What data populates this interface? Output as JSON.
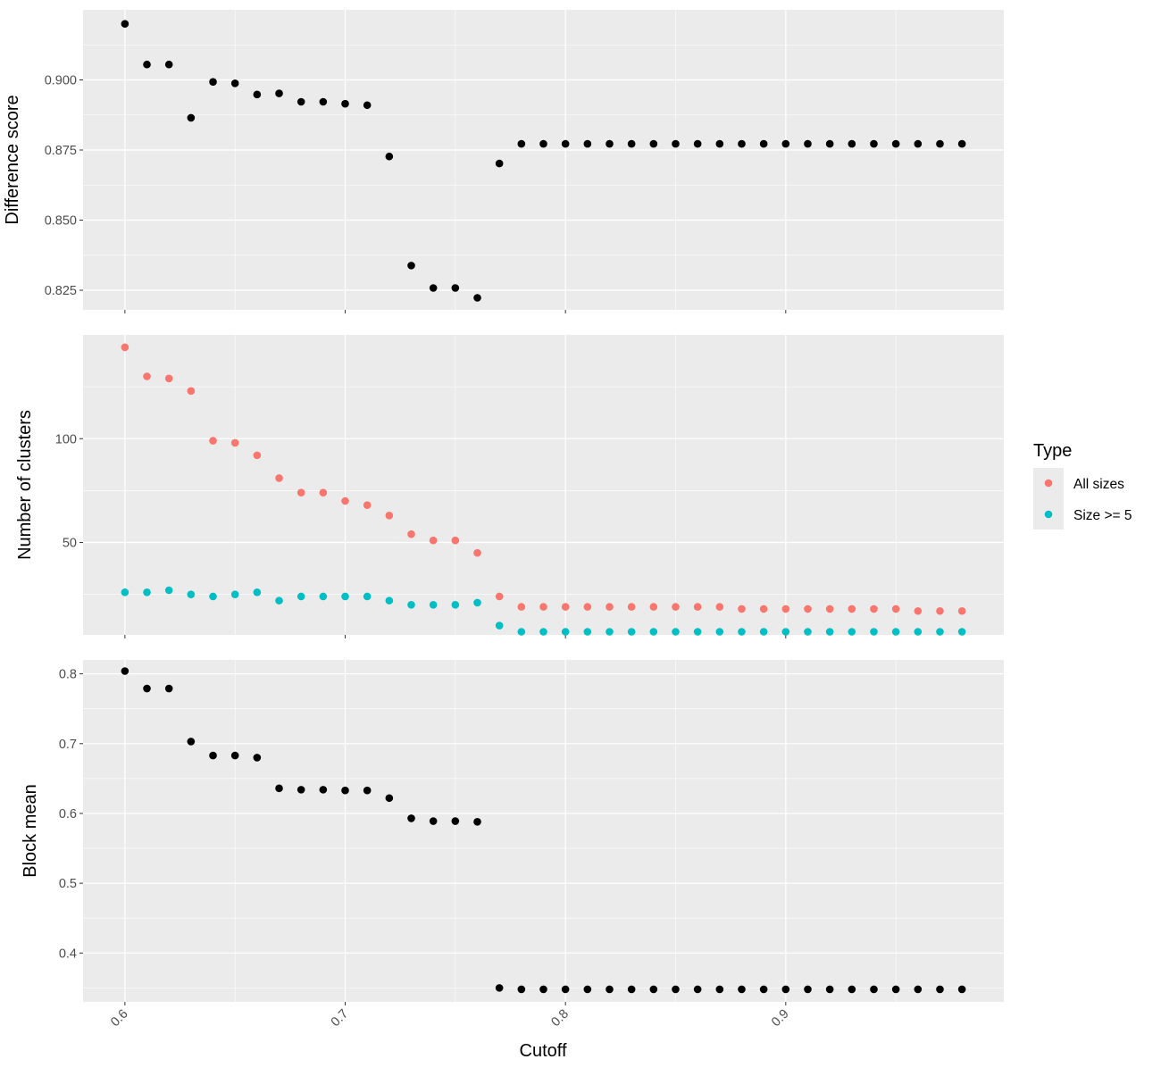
{
  "chart_data": [
    {
      "type": "scatter",
      "ylabel": "Difference score",
      "xlabel": "",
      "xlim": [
        0.581,
        0.999
      ],
      "ylim": [
        0.818,
        0.925
      ],
      "yticks": [
        0.825,
        0.85,
        0.875,
        0.9
      ],
      "ytick_labels": [
        "0.825",
        "0.850",
        "0.875",
        "0.900"
      ],
      "series": [
        {
          "color": "#000000",
          "x": [
            0.6,
            0.61,
            0.62,
            0.63,
            0.64,
            0.65,
            0.66,
            0.67,
            0.68,
            0.69,
            0.7,
            0.71,
            0.72,
            0.73,
            0.74,
            0.75,
            0.76,
            0.77,
            0.78,
            0.79,
            0.8,
            0.81,
            0.82,
            0.83,
            0.84,
            0.85,
            0.86,
            0.87,
            0.88,
            0.89,
            0.9,
            0.91,
            0.92,
            0.93,
            0.94,
            0.95,
            0.96,
            0.97,
            0.98
          ],
          "y": [
            0.92,
            0.9055,
            0.9055,
            0.8865,
            0.8993,
            0.8988,
            0.8948,
            0.8952,
            0.8922,
            0.8922,
            0.8915,
            0.891,
            0.8727,
            0.8338,
            0.8258,
            0.8258,
            0.8223,
            0.8702,
            0.8772,
            0.8772,
            0.8772,
            0.8772,
            0.8772,
            0.8772,
            0.8772,
            0.8772,
            0.8772,
            0.8772,
            0.8772,
            0.8772,
            0.8772,
            0.8772,
            0.8772,
            0.8772,
            0.8772,
            0.8772,
            0.8772,
            0.8772,
            0.8772
          ]
        }
      ]
    },
    {
      "type": "scatter",
      "ylabel": "Number of clusters",
      "xlabel": "",
      "xlim": [
        0.581,
        0.999
      ],
      "ylim": [
        5.5,
        150
      ],
      "yticks": [
        50,
        100
      ],
      "ytick_labels": [
        "50",
        "100"
      ],
      "legend": {
        "title": "Type",
        "position": "right",
        "entries": [
          "All sizes",
          "Size >= 5"
        ]
      },
      "series": [
        {
          "name": "All sizes",
          "color": "#F8766D",
          "x": [
            0.6,
            0.61,
            0.62,
            0.63,
            0.64,
            0.65,
            0.66,
            0.67,
            0.68,
            0.69,
            0.7,
            0.71,
            0.72,
            0.73,
            0.74,
            0.75,
            0.76,
            0.77,
            0.78,
            0.79,
            0.8,
            0.81,
            0.82,
            0.83,
            0.84,
            0.85,
            0.86,
            0.87,
            0.88,
            0.89,
            0.9,
            0.91,
            0.92,
            0.93,
            0.94,
            0.95,
            0.96,
            0.97,
            0.98
          ],
          "y": [
            144,
            130,
            129,
            123,
            99,
            98,
            92,
            81,
            74,
            74,
            70,
            68,
            63,
            54,
            51,
            51,
            45,
            24,
            19,
            19,
            19,
            19,
            19,
            19,
            19,
            19,
            19,
            19,
            18,
            18,
            18,
            18,
            18,
            18,
            18,
            18,
            17,
            17,
            17
          ]
        },
        {
          "name": "Size >= 5",
          "color": "#00BFC4",
          "x": [
            0.6,
            0.61,
            0.62,
            0.63,
            0.64,
            0.65,
            0.66,
            0.67,
            0.68,
            0.69,
            0.7,
            0.71,
            0.72,
            0.73,
            0.74,
            0.75,
            0.76,
            0.77,
            0.78,
            0.79,
            0.8,
            0.81,
            0.82,
            0.83,
            0.84,
            0.85,
            0.86,
            0.87,
            0.88,
            0.89,
            0.9,
            0.91,
            0.92,
            0.93,
            0.94,
            0.95,
            0.96,
            0.97,
            0.98
          ],
          "y": [
            26,
            26,
            27,
            25,
            24,
            25,
            26,
            22,
            24,
            24,
            24,
            24,
            22,
            20,
            20,
            20,
            21,
            10,
            7,
            7,
            7,
            7,
            7,
            7,
            7,
            7,
            7,
            7,
            7,
            7,
            7,
            7,
            7,
            7,
            7,
            7,
            7,
            7,
            7
          ]
        }
      ]
    },
    {
      "type": "scatter",
      "ylabel": "Block mean",
      "xlabel": "Cutoff",
      "xlim": [
        0.581,
        0.999
      ],
      "ylim": [
        0.33,
        0.82
      ],
      "yticks": [
        0.4,
        0.5,
        0.6,
        0.7,
        0.8
      ],
      "ytick_labels": [
        "0.4",
        "0.5",
        "0.6",
        "0.7",
        "0.8"
      ],
      "xticks": [
        0.6,
        0.7,
        0.8,
        0.9
      ],
      "xtick_labels": [
        "0.6",
        "0.7",
        "0.8",
        "0.9"
      ],
      "series": [
        {
          "color": "#000000",
          "x": [
            0.6,
            0.61,
            0.62,
            0.63,
            0.64,
            0.65,
            0.66,
            0.67,
            0.68,
            0.69,
            0.7,
            0.71,
            0.72,
            0.73,
            0.74,
            0.75,
            0.76,
            0.77,
            0.78,
            0.79,
            0.8,
            0.81,
            0.82,
            0.83,
            0.84,
            0.85,
            0.86,
            0.87,
            0.88,
            0.89,
            0.9,
            0.91,
            0.92,
            0.93,
            0.94,
            0.95,
            0.96,
            0.97,
            0.98
          ],
          "y": [
            0.804,
            0.779,
            0.779,
            0.703,
            0.683,
            0.683,
            0.68,
            0.636,
            0.634,
            0.634,
            0.633,
            0.633,
            0.622,
            0.593,
            0.589,
            0.589,
            0.588,
            0.35,
            0.348,
            0.348,
            0.348,
            0.348,
            0.348,
            0.348,
            0.348,
            0.348,
            0.348,
            0.348,
            0.348,
            0.348,
            0.348,
            0.348,
            0.348,
            0.348,
            0.348,
            0.348,
            0.348,
            0.348,
            0.348
          ]
        }
      ]
    }
  ],
  "colors": {
    "panel_background": "#EBEBEB",
    "grid_major": "#FFFFFF",
    "tick_text": "#4D4D4D",
    "axis_title": "#000000"
  }
}
